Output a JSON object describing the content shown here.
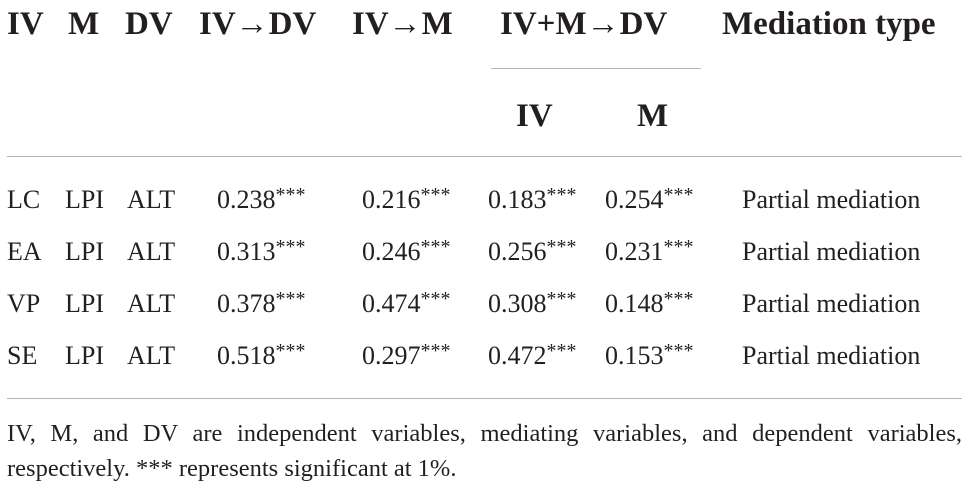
{
  "table": {
    "headers": {
      "iv": "IV",
      "m": "M",
      "dv": "DV",
      "iv_dv": "IV→DV",
      "iv_m": "IV→M",
      "ivm_dv": "IV+M→DV",
      "mediation_type": "Mediation type",
      "sub_iv": "IV",
      "sub_m": "M"
    },
    "rows": [
      {
        "iv": "LC",
        "m": "LPI",
        "dv": "ALT",
        "iv_dv": "0.238",
        "iv_m": "0.216",
        "ivm_iv": "0.183",
        "ivm_m": "0.254",
        "type": "Partial mediation"
      },
      {
        "iv": "EA",
        "m": "LPI",
        "dv": "ALT",
        "iv_dv": "0.313",
        "iv_m": "0.246",
        "ivm_iv": "0.256",
        "ivm_m": "0.231",
        "type": "Partial mediation"
      },
      {
        "iv": "VP",
        "m": "LPI",
        "dv": "ALT",
        "iv_dv": "0.378",
        "iv_m": "0.474",
        "ivm_iv": "0.308",
        "ivm_m": "0.148",
        "type": "Partial mediation"
      },
      {
        "iv": "SE",
        "m": "LPI",
        "dv": "ALT",
        "iv_dv": "0.518",
        "iv_m": "0.297",
        "ivm_iv": "0.472",
        "ivm_m": "0.153",
        "type": "Partial mediation"
      }
    ],
    "significance_marker": "***",
    "footnote": "IV, M, and DV are independent variables, mediating variables, and dependent variables, respectively. *** represents significant at 1%."
  }
}
